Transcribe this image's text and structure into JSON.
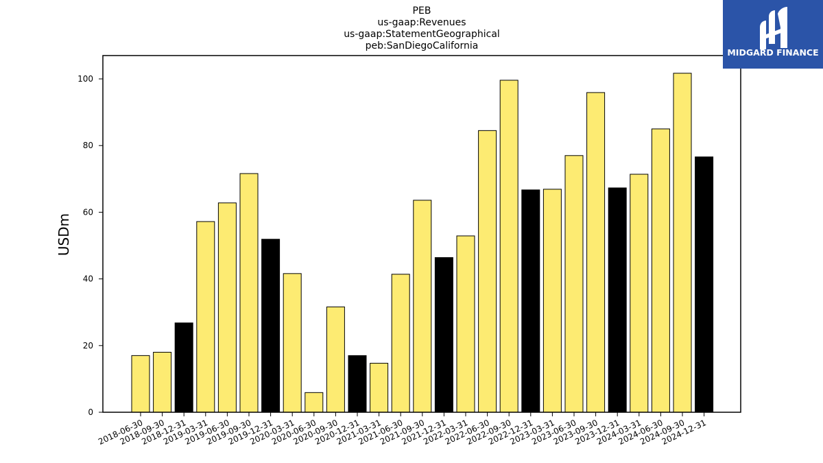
{
  "chart_data": {
    "type": "bar",
    "title_lines": [
      "PEB",
      "us-gaap:Revenues",
      "us-gaap:StatementGeographical",
      "peb:SanDiegoCalifornia"
    ],
    "xlabel": "",
    "ylabel": "USDm",
    "ylim": [
      0,
      107
    ],
    "yticks": [
      0,
      20,
      40,
      60,
      80,
      100
    ],
    "categories": [
      "2018-06-30",
      "2018-09-30",
      "2018-12-31",
      "2019-03-31",
      "2019-06-30",
      "2019-09-30",
      "2019-12-31",
      "2020-03-31",
      "2020-06-30",
      "2020-09-30",
      "2020-12-31",
      "2021-03-31",
      "2021-06-30",
      "2021-09-30",
      "2021-12-31",
      "2022-03-31",
      "2022-06-30",
      "2022-09-30",
      "2022-12-31",
      "2023-03-31",
      "2023-06-30",
      "2023-09-30",
      "2023-12-31",
      "2024-03-31",
      "2024-06-30",
      "2024-09-30",
      "2024-12-31"
    ],
    "values": [
      17.0,
      18.0,
      26.8,
      57.2,
      62.8,
      71.6,
      51.9,
      41.6,
      5.9,
      31.6,
      17.0,
      14.7,
      41.4,
      63.6,
      46.4,
      52.9,
      84.5,
      99.6,
      66.7,
      66.9,
      77.0,
      95.9,
      67.3,
      71.4,
      85.0,
      101.7,
      76.6
    ],
    "quarter_end_year_marker": [
      false,
      false,
      true,
      false,
      false,
      false,
      true,
      false,
      false,
      false,
      true,
      false,
      false,
      false,
      true,
      false,
      false,
      false,
      true,
      false,
      false,
      false,
      true,
      false,
      false,
      false,
      true
    ],
    "colors": {
      "quarter_bar": "#fdeb72",
      "year_end_bar": "#000000",
      "bar_edge": "#000000"
    },
    "grid": false,
    "legend": "none"
  },
  "logo": {
    "text": "MIDGARD FINANCE",
    "icon": "midgard-logo-icon",
    "background_color": "#2b54a8"
  }
}
